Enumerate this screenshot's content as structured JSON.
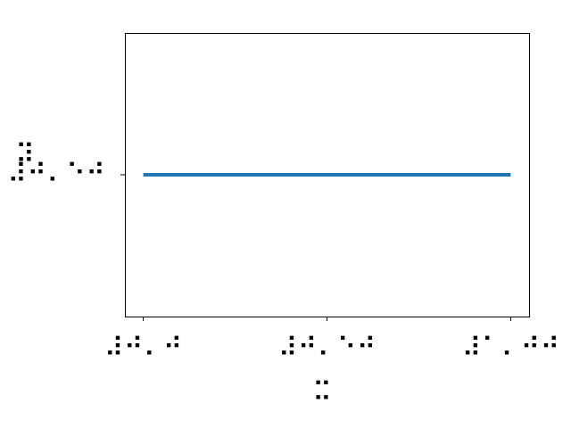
{
  "chart_data": {
    "type": "line",
    "x": [
      0.0,
      0.5,
      1.0
    ],
    "series": [
      {
        "values": [
          0.5,
          0.5,
          0.5
        ],
        "color": "#1f77b4"
      }
    ],
    "xlim": [
      -0.05,
      1.05
    ],
    "ylim": [
      0.0,
      1.0
    ],
    "xticks": [
      {
        "value": 0.0,
        "label": "⠼⠚⠄⠚"
      },
      {
        "value": 0.5,
        "label": "⠼⠚⠄⠑⠚"
      },
      {
        "value": 1.0,
        "label": "⠼⠁⠄⠚⠚"
      }
    ],
    "yticks": [
      {
        "value": 0.5,
        "label": "⠼⠚⠄⠑⠚"
      }
    ],
    "xlabel": "⠭",
    "ylabel": "⠽",
    "grid": false,
    "legend": "none"
  }
}
